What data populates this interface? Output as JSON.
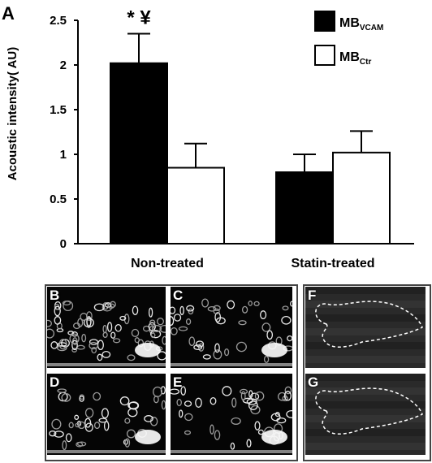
{
  "panel_label": "A",
  "chart_data": {
    "type": "bar",
    "title": "",
    "ylabel": "Acoustic intensity( AU)",
    "xlabel": "",
    "ylim": [
      0,
      2.5
    ],
    "yticks": [
      0,
      0.5,
      1,
      1.5,
      2,
      2.5
    ],
    "ytick_labels": [
      "0",
      "0.5",
      "1",
      "1.5",
      "2",
      "2.5"
    ],
    "categories": [
      "Non-treated",
      "Statin-treated"
    ],
    "series": [
      {
        "name_main": "MB",
        "name_sub": "VCAM",
        "color": "#000000",
        "values": [
          2.02,
          0.8
        ],
        "errors": [
          0.33,
          0.2
        ]
      },
      {
        "name_main": "MB",
        "name_sub": "Ctr",
        "color": "#ffffff",
        "values": [
          0.85,
          1.02
        ],
        "errors": [
          0.27,
          0.24
        ]
      }
    ],
    "annotations": [
      {
        "category": 0,
        "series": 0,
        "text": "* ¥"
      }
    ],
    "legend_position": "top-right",
    "grid": false
  },
  "image_panels": [
    {
      "label": "B",
      "pattern": "dense"
    },
    {
      "label": "C",
      "pattern": "medium"
    },
    {
      "label": "D",
      "pattern": "medium"
    },
    {
      "label": "E",
      "pattern": "medium"
    },
    {
      "label": "F",
      "pattern": "outline"
    },
    {
      "label": "G",
      "pattern": "outline"
    }
  ]
}
